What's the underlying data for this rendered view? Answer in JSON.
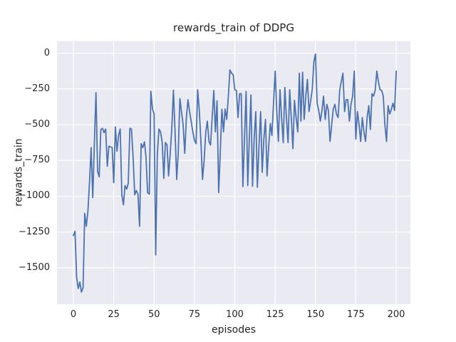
{
  "chart_data": {
    "type": "line",
    "title": "rewards_train of DDPG",
    "xlabel": "episodes",
    "ylabel": "rewards_train",
    "grid": true,
    "style": "seaborn-darkgrid",
    "legend": null,
    "xlim": [
      -10.15,
      208.8
    ],
    "ylim": [
      -1755,
      85
    ],
    "x_start": 0,
    "x_step": 1,
    "xticks": {
      "values": [
        0,
        25,
        50,
        75,
        100,
        125,
        150,
        175,
        200
      ],
      "labels": [
        "0",
        "25",
        "50",
        "75",
        "100",
        "125",
        "150",
        "175",
        "200"
      ]
    },
    "yticks": {
      "values": [
        0,
        -250,
        -500,
        -750,
        -1000,
        -1250,
        -1500
      ],
      "labels": [
        "0",
        "−250",
        "−500",
        "−750",
        "−1000",
        "−1250",
        "−1500"
      ]
    },
    "series": [
      {
        "name": "rewards_train",
        "values": [
          -1275,
          -1245,
          -1565,
          -1645,
          -1600,
          -1670,
          -1640,
          -1120,
          -1210,
          -1105,
          -905,
          -660,
          -1010,
          -640,
          -275,
          -825,
          -865,
          -535,
          -525,
          -555,
          -530,
          -790,
          -650,
          -655,
          -660,
          -905,
          -515,
          -685,
          -575,
          -530,
          -990,
          -1060,
          -925,
          -950,
          -910,
          -525,
          -530,
          -725,
          -990,
          -960,
          -985,
          -1210,
          -633,
          -660,
          -620,
          -725,
          -975,
          -985,
          -266,
          -390,
          -425,
          -1410,
          -710,
          -530,
          -550,
          -620,
          -875,
          -625,
          -640,
          -858,
          -700,
          -520,
          -258,
          -550,
          -883,
          -690,
          -317,
          -413,
          -500,
          -700,
          -450,
          -325,
          -408,
          -480,
          -550,
          -608,
          -633,
          -255,
          -400,
          -617,
          -883,
          -750,
          -550,
          -475,
          -617,
          -642,
          -450,
          -260,
          -550,
          -333,
          -975,
          -700,
          -392,
          -550,
          -390,
          -463,
          -300,
          -117,
          -140,
          -150,
          -255,
          -260,
          -450,
          -283,
          -283,
          -933,
          -600,
          -267,
          -925,
          -600,
          -292,
          -930,
          -600,
          -408,
          -937,
          -650,
          -408,
          -833,
          -600,
          -463,
          -858,
          -650,
          -492,
          -575,
          -350,
          -125,
          -400,
          -617,
          -255,
          -450,
          -625,
          -240,
          -450,
          -625,
          -255,
          -450,
          -667,
          -330,
          -450,
          -550,
          -140,
          -475,
          -133,
          -463,
          -300,
          -183,
          -408,
          -333,
          -250,
          -60,
          -5,
          -350,
          -400,
          -475,
          -400,
          -300,
          -463,
          -358,
          -400,
          -617,
          -500,
          -392,
          -358,
          -425,
          -450,
          -258,
          -200,
          -140,
          -408,
          -325,
          -325,
          -475,
          -358,
          -300,
          -125,
          -600,
          -408,
          -500,
          -617,
          -450,
          -550,
          -617,
          -450,
          -367,
          -533,
          -283,
          -300,
          -258,
          -125,
          -200,
          -255,
          -260,
          -300,
          -500,
          -617,
          -367,
          -425,
          -392,
          -350,
          -400,
          -125
        ]
      }
    ],
    "colors": {
      "line": "#4C72B0",
      "axes_background": "#EAEAF2",
      "gridline": "#FFFFFF",
      "figure_background": "#FFFFFF",
      "text": "#262626"
    }
  }
}
